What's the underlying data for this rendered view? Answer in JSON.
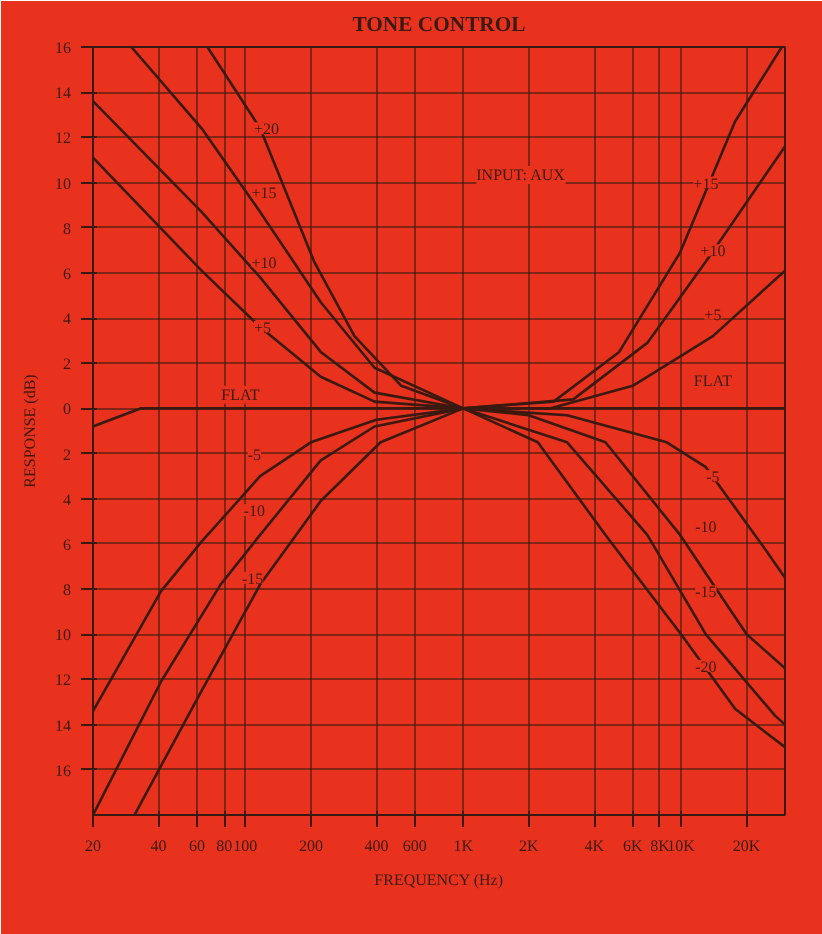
{
  "chart_data": {
    "type": "line",
    "title": "TONE CONTROL",
    "xlabel": "FREQUENCY (Hz)",
    "ylabel": "RESPONSE (dB)",
    "log": "x",
    "grid": true,
    "xlim": [
      20,
      30000
    ],
    "ylim": [
      -18,
      16
    ],
    "xticks": [
      20,
      40,
      60,
      80,
      100,
      200,
      400,
      600,
      {
        "value": 1000,
        "label": "1K"
      },
      {
        "value": 2000,
        "label": "2K"
      },
      {
        "value": 4000,
        "label": "4K"
      },
      {
        "value": 6000,
        "label": "6K"
      },
      {
        "value": 8000,
        "label": "8K"
      },
      {
        "value": 10000,
        "label": "10K"
      },
      {
        "value": 20000,
        "label": "20K"
      }
    ],
    "yticks": [
      {
        "value": -16,
        "label": "16"
      },
      {
        "value": -14,
        "label": "14"
      },
      {
        "value": -12,
        "label": "12"
      },
      {
        "value": -10,
        "label": "10"
      },
      {
        "value": -8,
        "label": "8"
      },
      {
        "value": -6,
        "label": "6"
      },
      {
        "value": -4,
        "label": "4"
      },
      {
        "value": -2,
        "label": "2"
      },
      0,
      2,
      4,
      6,
      8,
      10,
      12,
      14,
      16
    ],
    "series": [
      {
        "color": "#3a1a10",
        "x": [
          67,
          117,
          207,
          317,
          520,
          1000,
          2600,
          5200,
          9900,
          17700,
          29000
        ],
        "values": [
          16,
          12.4,
          6.5,
          3.2,
          1.0,
          0,
          0.3,
          2.5,
          6.9,
          12.7,
          16
        ]
      },
      {
        "color": "#3a1a10",
        "x": [
          30,
          63,
          117,
          222,
          392,
          1000,
          3200,
          7000,
          13000,
          30000
        ],
        "values": [
          16,
          12.4,
          8.7,
          4.7,
          1.8,
          0,
          0.4,
          2.9,
          6.5,
          11.6
        ]
      },
      {
        "color": "#3a1a10",
        "x": [
          20,
          63,
          117,
          222,
          392,
          1000,
          2500,
          6000,
          14000,
          30000
        ],
        "values": [
          13.6,
          8.7,
          5.8,
          2.5,
          0.7,
          0,
          0,
          1.0,
          3.2,
          6.1
        ]
      },
      {
        "color": "#3a1a10",
        "x": [
          20,
          63,
          117,
          222,
          392,
          1000
        ],
        "values": [
          11.1,
          6.1,
          3.6,
          1.4,
          0.3,
          0
        ]
      },
      {
        "color": "#3a1a10",
        "x": [
          20,
          33,
          1000,
          30000
        ],
        "values": [
          -0.8,
          0,
          0,
          0
        ]
      },
      {
        "color": "#3a1a10",
        "x": [
          20,
          41,
          63,
          117,
          200,
          400,
          1000,
          3000,
          8600,
          13000,
          24600,
          30000
        ],
        "values": [
          -13.4,
          -8.1,
          -5.9,
          -3.0,
          -1.5,
          -0.5,
          0,
          -0.3,
          -1.5,
          -2.6,
          -6.3,
          -7.5
        ]
      },
      {
        "color": "#3a1a10",
        "x": [
          20,
          41,
          77,
          117,
          222,
          392,
          1000,
          2000,
          4500,
          9900,
          20000,
          30000
        ],
        "values": [
          -18,
          -12.1,
          -7.8,
          -5.6,
          -2.3,
          -0.8,
          0,
          -0.3,
          -1.5,
          -5.6,
          -10,
          -11.5
        ]
      },
      {
        "color": "#3a1a10",
        "x": [
          31,
          63,
          117,
          222,
          418,
          1000,
          3000,
          7000,
          13000,
          27000,
          30000
        ],
        "values": [
          -18,
          -12.5,
          -7.8,
          -4.1,
          -1.5,
          0,
          -1.5,
          -5.6,
          -10,
          -13.6,
          -14
        ]
      },
      {
        "color": "#3a1a10",
        "x": [
          1000,
          2200,
          4500,
          10000,
          17700,
          30000
        ],
        "values": [
          0,
          -1.5,
          -5.6,
          -10,
          -13.3,
          -15
        ]
      }
    ],
    "annotations": [
      "INPUT: AUX",
      {
        "text": "+20",
        "x": 125,
        "y": 12.4
      },
      {
        "text": "+15",
        "x": 122,
        "y": 9.6
      },
      {
        "text": "+10",
        "x": 122,
        "y": 6.5
      },
      {
        "text": "+5",
        "x": 120,
        "y": 3.6
      },
      {
        "text": "FLAT",
        "x": 95,
        "y": 0.6
      },
      {
        "text": "-5",
        "x": 110,
        "y": -2
      },
      {
        "text": "-10",
        "x": 110,
        "y": -4.5
      },
      {
        "text": "-15",
        "x": 108,
        "y": -7.5
      },
      {
        "text": "+15",
        "x": 13000,
        "y": 10
      },
      {
        "text": "+10",
        "x": 14000,
        "y": 7
      },
      {
        "text": "+5",
        "x": 14000,
        "y": 4.2
      },
      {
        "text": "FLAT",
        "x": 14000,
        "y": 1.2
      },
      {
        "text": "-5",
        "x": 14000,
        "y": -3
      },
      {
        "text": "-10",
        "x": 13000,
        "y": -5.2
      },
      {
        "text": "-15",
        "x": 13000,
        "y": -8.1
      },
      {
        "text": "-20",
        "x": 13000,
        "y": -11.4
      }
    ]
  }
}
